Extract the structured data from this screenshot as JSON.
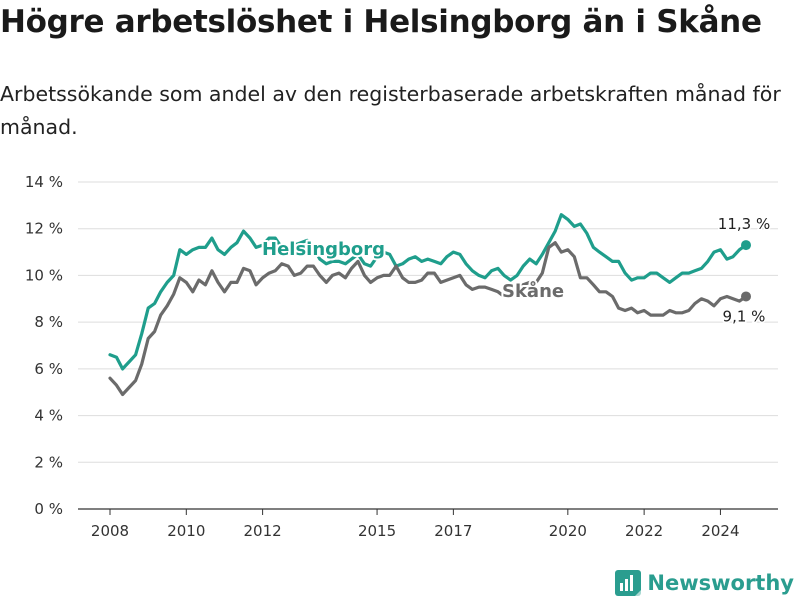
{
  "title": "Högre arbetslöshet i Helsingborg än i Skåne",
  "subtitle": "Arbetssökande som andel av den registerbaserade arbetskraften månad för månad.",
  "brand": {
    "name": "Newsworthy",
    "icon": "newsworthy-logo-icon"
  },
  "colors": {
    "helsingborg": "#1f9e8c",
    "skane": "#6b6b6b",
    "grid": "#dddddd",
    "axis": "#333333"
  },
  "chart_data": {
    "type": "line",
    "title": "Högre arbetslöshet i Helsingborg än i Skåne",
    "xlabel": "",
    "ylabel": "",
    "xlim": [
      2007.75,
      2025.25
    ],
    "ylim": [
      0,
      14
    ],
    "y_ticks": [
      0,
      2,
      4,
      6,
      8,
      10,
      12,
      14
    ],
    "y_tick_labels": [
      "0 %",
      "2 %",
      "4 %",
      "6 %",
      "8 %",
      "10 %",
      "12 %",
      "14 %"
    ],
    "x_ticks": [
      2008,
      2010,
      2012,
      2015,
      2017,
      2020,
      2022,
      2024
    ],
    "x_tick_labels": [
      "2008",
      "2010",
      "2012",
      "2015",
      "2017",
      "2020",
      "2022",
      "2024"
    ],
    "grid": true,
    "series": [
      {
        "name": "Helsingborg",
        "label": "Helsingborg",
        "color": "#1f9e8c",
        "end_label": "11,3 %",
        "x": [
          2008.0,
          2008.17,
          2008.33,
          2008.5,
          2008.67,
          2008.83,
          2009.0,
          2009.17,
          2009.33,
          2009.5,
          2009.67,
          2009.83,
          2010.0,
          2010.17,
          2010.33,
          2010.5,
          2010.67,
          2010.83,
          2011.0,
          2011.17,
          2011.33,
          2011.5,
          2011.67,
          2011.83,
          2012.0,
          2012.17,
          2012.33,
          2012.5,
          2012.67,
          2012.83,
          2013.0,
          2013.17,
          2013.33,
          2013.5,
          2013.67,
          2013.83,
          2014.0,
          2014.17,
          2014.33,
          2014.5,
          2014.67,
          2014.83,
          2015.0,
          2015.17,
          2015.33,
          2015.5,
          2015.67,
          2015.83,
          2016.0,
          2016.17,
          2016.33,
          2016.5,
          2016.67,
          2016.83,
          2017.0,
          2017.17,
          2017.33,
          2017.5,
          2017.67,
          2017.83,
          2018.0,
          2018.17,
          2018.33,
          2018.5,
          2018.67,
          2018.83,
          2019.0,
          2019.17,
          2019.33,
          2019.5,
          2019.67,
          2019.83,
          2020.0,
          2020.17,
          2020.33,
          2020.5,
          2020.67,
          2020.83,
          2021.0,
          2021.17,
          2021.33,
          2021.5,
          2021.67,
          2021.83,
          2022.0,
          2022.17,
          2022.33,
          2022.5,
          2022.67,
          2022.83,
          2023.0,
          2023.17,
          2023.33,
          2023.5,
          2023.67,
          2023.83,
          2024.0,
          2024.17,
          2024.33,
          2024.5,
          2024.67
        ],
        "values": [
          6.6,
          6.5,
          6.0,
          6.3,
          6.6,
          7.5,
          8.6,
          8.8,
          9.3,
          9.7,
          10.0,
          11.1,
          10.9,
          11.1,
          11.2,
          11.2,
          11.6,
          11.1,
          10.9,
          11.2,
          11.4,
          11.9,
          11.6,
          11.2,
          11.3,
          11.6,
          11.6,
          11.2,
          11.0,
          11.3,
          11.4,
          11.5,
          11.2,
          10.7,
          10.5,
          10.6,
          10.6,
          10.5,
          10.7,
          10.9,
          10.5,
          10.4,
          10.8,
          11.0,
          10.9,
          10.4,
          10.5,
          10.7,
          10.8,
          10.6,
          10.7,
          10.6,
          10.5,
          10.8,
          11.0,
          10.9,
          10.5,
          10.2,
          10.0,
          9.9,
          10.2,
          10.3,
          10.0,
          9.8,
          10.0,
          10.4,
          10.7,
          10.5,
          10.9,
          11.4,
          11.9,
          12.6,
          12.4,
          12.1,
          12.2,
          11.8,
          11.2,
          11.0,
          10.8,
          10.6,
          10.6,
          10.1,
          9.8,
          9.9,
          9.9,
          10.1,
          10.1,
          9.9,
          9.7,
          9.9,
          10.1,
          10.1,
          10.2,
          10.3,
          10.6,
          11.0,
          11.1,
          10.7,
          10.8,
          11.1,
          11.3
        ]
      },
      {
        "name": "Skåne",
        "label": "Skåne",
        "color": "#6b6b6b",
        "end_label": "9,1 %",
        "x": [
          2008.0,
          2008.17,
          2008.33,
          2008.5,
          2008.67,
          2008.83,
          2009.0,
          2009.17,
          2009.33,
          2009.5,
          2009.67,
          2009.83,
          2010.0,
          2010.17,
          2010.33,
          2010.5,
          2010.67,
          2010.83,
          2011.0,
          2011.17,
          2011.33,
          2011.5,
          2011.67,
          2011.83,
          2012.0,
          2012.17,
          2012.33,
          2012.5,
          2012.67,
          2012.83,
          2013.0,
          2013.17,
          2013.33,
          2013.5,
          2013.67,
          2013.83,
          2014.0,
          2014.17,
          2014.33,
          2014.5,
          2014.67,
          2014.83,
          2015.0,
          2015.17,
          2015.33,
          2015.5,
          2015.67,
          2015.83,
          2016.0,
          2016.17,
          2016.33,
          2016.5,
          2016.67,
          2016.83,
          2017.0,
          2017.17,
          2017.33,
          2017.5,
          2017.67,
          2017.83,
          2018.0,
          2018.17,
          2018.33,
          2018.5,
          2018.67,
          2018.83,
          2019.0,
          2019.17,
          2019.33,
          2019.5,
          2019.67,
          2019.83,
          2020.0,
          2020.17,
          2020.33,
          2020.5,
          2020.67,
          2020.83,
          2021.0,
          2021.17,
          2021.33,
          2021.5,
          2021.67,
          2021.83,
          2022.0,
          2022.17,
          2022.33,
          2022.5,
          2022.67,
          2022.83,
          2023.0,
          2023.17,
          2023.33,
          2023.5,
          2023.67,
          2023.83,
          2024.0,
          2024.17,
          2024.33,
          2024.5,
          2024.67
        ],
        "values": [
          5.6,
          5.3,
          4.9,
          5.2,
          5.5,
          6.2,
          7.3,
          7.6,
          8.3,
          8.7,
          9.2,
          9.9,
          9.7,
          9.3,
          9.8,
          9.6,
          10.2,
          9.7,
          9.3,
          9.7,
          9.7,
          10.3,
          10.2,
          9.6,
          9.9,
          10.1,
          10.2,
          10.5,
          10.4,
          10.0,
          10.1,
          10.4,
          10.4,
          10.0,
          9.7,
          10.0,
          10.1,
          9.9,
          10.3,
          10.6,
          10.0,
          9.7,
          9.9,
          10.0,
          10.0,
          10.4,
          9.9,
          9.7,
          9.7,
          9.8,
          10.1,
          10.1,
          9.7,
          9.8,
          9.9,
          10.0,
          9.6,
          9.4,
          9.5,
          9.5,
          9.4,
          9.3,
          9.1,
          9.1,
          9.3,
          9.6,
          9.7,
          9.7,
          10.1,
          11.2,
          11.4,
          11.0,
          11.1,
          10.8,
          9.9,
          9.9,
          9.6,
          9.3,
          9.3,
          9.1,
          8.6,
          8.5,
          8.6,
          8.4,
          8.5,
          8.3,
          8.3,
          8.3,
          8.5,
          8.4,
          8.4,
          8.5,
          8.8,
          9.0,
          8.9,
          8.7,
          9.0,
          9.1,
          9.0,
          8.9,
          9.1
        ]
      }
    ]
  }
}
